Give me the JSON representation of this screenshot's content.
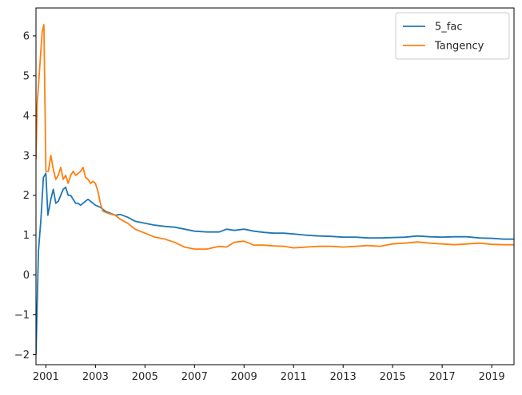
{
  "chart_data": {
    "type": "line",
    "title": "",
    "xlabel": "",
    "ylabel": "",
    "xlim": [
      2000.6,
      2019.9
    ],
    "ylim": [
      -2.25,
      6.7
    ],
    "x_ticks": [
      2001,
      2003,
      2005,
      2007,
      2009,
      2011,
      2013,
      2015,
      2017,
      2019
    ],
    "x_tick_labels": [
      "2001",
      "2003",
      "2005",
      "2007",
      "2009",
      "2011",
      "2013",
      "2015",
      "2017",
      "2019"
    ],
    "y_ticks": [
      -2,
      -1,
      0,
      1,
      2,
      3,
      4,
      5,
      6
    ],
    "y_tick_labels": [
      "−2",
      "−1",
      "0",
      "1",
      "2",
      "3",
      "4",
      "5",
      "6"
    ],
    "legend_position": "top-right",
    "series": [
      {
        "name": "5_fac",
        "color": "#1f77b4",
        "points": [
          [
            2000.6,
            -2.0
          ],
          [
            2000.7,
            0.6
          ],
          [
            2000.8,
            1.4
          ],
          [
            2000.9,
            2.45
          ],
          [
            2001.0,
            2.55
          ],
          [
            2001.08,
            1.5
          ],
          [
            2001.2,
            1.9
          ],
          [
            2001.3,
            2.15
          ],
          [
            2001.4,
            1.8
          ],
          [
            2001.5,
            1.85
          ],
          [
            2001.6,
            2.0
          ],
          [
            2001.7,
            2.15
          ],
          [
            2001.8,
            2.2
          ],
          [
            2001.9,
            2.0
          ],
          [
            2002.0,
            2.0
          ],
          [
            2002.1,
            1.9
          ],
          [
            2002.2,
            1.8
          ],
          [
            2002.3,
            1.8
          ],
          [
            2002.4,
            1.75
          ],
          [
            2002.5,
            1.8
          ],
          [
            2002.6,
            1.85
          ],
          [
            2002.7,
            1.9
          ],
          [
            2002.8,
            1.85
          ],
          [
            2002.9,
            1.8
          ],
          [
            2003.0,
            1.75
          ],
          [
            2003.2,
            1.7
          ],
          [
            2003.4,
            1.6
          ],
          [
            2003.6,
            1.55
          ],
          [
            2003.8,
            1.5
          ],
          [
            2004.0,
            1.52
          ],
          [
            2004.3,
            1.45
          ],
          [
            2004.6,
            1.35
          ],
          [
            2005.0,
            1.3
          ],
          [
            2005.4,
            1.25
          ],
          [
            2005.8,
            1.22
          ],
          [
            2006.2,
            1.2
          ],
          [
            2006.6,
            1.15
          ],
          [
            2007.0,
            1.1
          ],
          [
            2007.5,
            1.08
          ],
          [
            2008.0,
            1.08
          ],
          [
            2008.3,
            1.15
          ],
          [
            2008.6,
            1.12
          ],
          [
            2009.0,
            1.15
          ],
          [
            2009.4,
            1.1
          ],
          [
            2009.8,
            1.07
          ],
          [
            2010.2,
            1.05
          ],
          [
            2010.6,
            1.05
          ],
          [
            2011.0,
            1.03
          ],
          [
            2011.5,
            1.0
          ],
          [
            2012.0,
            0.98
          ],
          [
            2012.5,
            0.97
          ],
          [
            2013.0,
            0.95
          ],
          [
            2013.5,
            0.95
          ],
          [
            2014.0,
            0.93
          ],
          [
            2014.5,
            0.93
          ],
          [
            2015.0,
            0.94
          ],
          [
            2015.5,
            0.95
          ],
          [
            2016.0,
            0.98
          ],
          [
            2016.5,
            0.96
          ],
          [
            2017.0,
            0.95
          ],
          [
            2017.5,
            0.96
          ],
          [
            2018.0,
            0.96
          ],
          [
            2018.5,
            0.93
          ],
          [
            2019.0,
            0.92
          ],
          [
            2019.5,
            0.9
          ],
          [
            2019.9,
            0.9
          ]
        ]
      },
      {
        "name": "Tangency",
        "color": "#ff7f0e",
        "points": [
          [
            2000.6,
            2.9
          ],
          [
            2000.65,
            4.3
          ],
          [
            2000.75,
            5.2
          ],
          [
            2000.85,
            6.1
          ],
          [
            2000.92,
            6.28
          ],
          [
            2001.0,
            2.6
          ],
          [
            2001.1,
            2.6
          ],
          [
            2001.2,
            3.0
          ],
          [
            2001.3,
            2.65
          ],
          [
            2001.4,
            2.4
          ],
          [
            2001.5,
            2.5
          ],
          [
            2001.6,
            2.7
          ],
          [
            2001.7,
            2.4
          ],
          [
            2001.8,
            2.5
          ],
          [
            2001.9,
            2.3
          ],
          [
            2002.0,
            2.5
          ],
          [
            2002.1,
            2.6
          ],
          [
            2002.2,
            2.5
          ],
          [
            2002.3,
            2.55
          ],
          [
            2002.4,
            2.6
          ],
          [
            2002.5,
            2.7
          ],
          [
            2002.6,
            2.45
          ],
          [
            2002.7,
            2.4
          ],
          [
            2002.8,
            2.3
          ],
          [
            2002.9,
            2.35
          ],
          [
            2003.0,
            2.3
          ],
          [
            2003.1,
            2.1
          ],
          [
            2003.2,
            1.8
          ],
          [
            2003.3,
            1.6
          ],
          [
            2003.5,
            1.55
          ],
          [
            2003.8,
            1.5
          ],
          [
            2004.0,
            1.4
          ],
          [
            2004.3,
            1.3
          ],
          [
            2004.6,
            1.15
          ],
          [
            2005.0,
            1.05
          ],
          [
            2005.4,
            0.95
          ],
          [
            2005.8,
            0.9
          ],
          [
            2006.2,
            0.82
          ],
          [
            2006.6,
            0.7
          ],
          [
            2007.0,
            0.65
          ],
          [
            2007.5,
            0.65
          ],
          [
            2008.0,
            0.72
          ],
          [
            2008.3,
            0.7
          ],
          [
            2008.6,
            0.82
          ],
          [
            2009.0,
            0.85
          ],
          [
            2009.4,
            0.75
          ],
          [
            2009.8,
            0.75
          ],
          [
            2010.2,
            0.73
          ],
          [
            2010.6,
            0.72
          ],
          [
            2011.0,
            0.68
          ],
          [
            2011.5,
            0.7
          ],
          [
            2012.0,
            0.72
          ],
          [
            2012.5,
            0.72
          ],
          [
            2013.0,
            0.7
          ],
          [
            2013.5,
            0.72
          ],
          [
            2014.0,
            0.74
          ],
          [
            2014.5,
            0.72
          ],
          [
            2015.0,
            0.78
          ],
          [
            2015.5,
            0.8
          ],
          [
            2016.0,
            0.83
          ],
          [
            2016.5,
            0.8
          ],
          [
            2017.0,
            0.78
          ],
          [
            2017.5,
            0.76
          ],
          [
            2018.0,
            0.78
          ],
          [
            2018.5,
            0.8
          ],
          [
            2019.0,
            0.77
          ],
          [
            2019.5,
            0.76
          ],
          [
            2019.9,
            0.76
          ]
        ]
      }
    ]
  }
}
